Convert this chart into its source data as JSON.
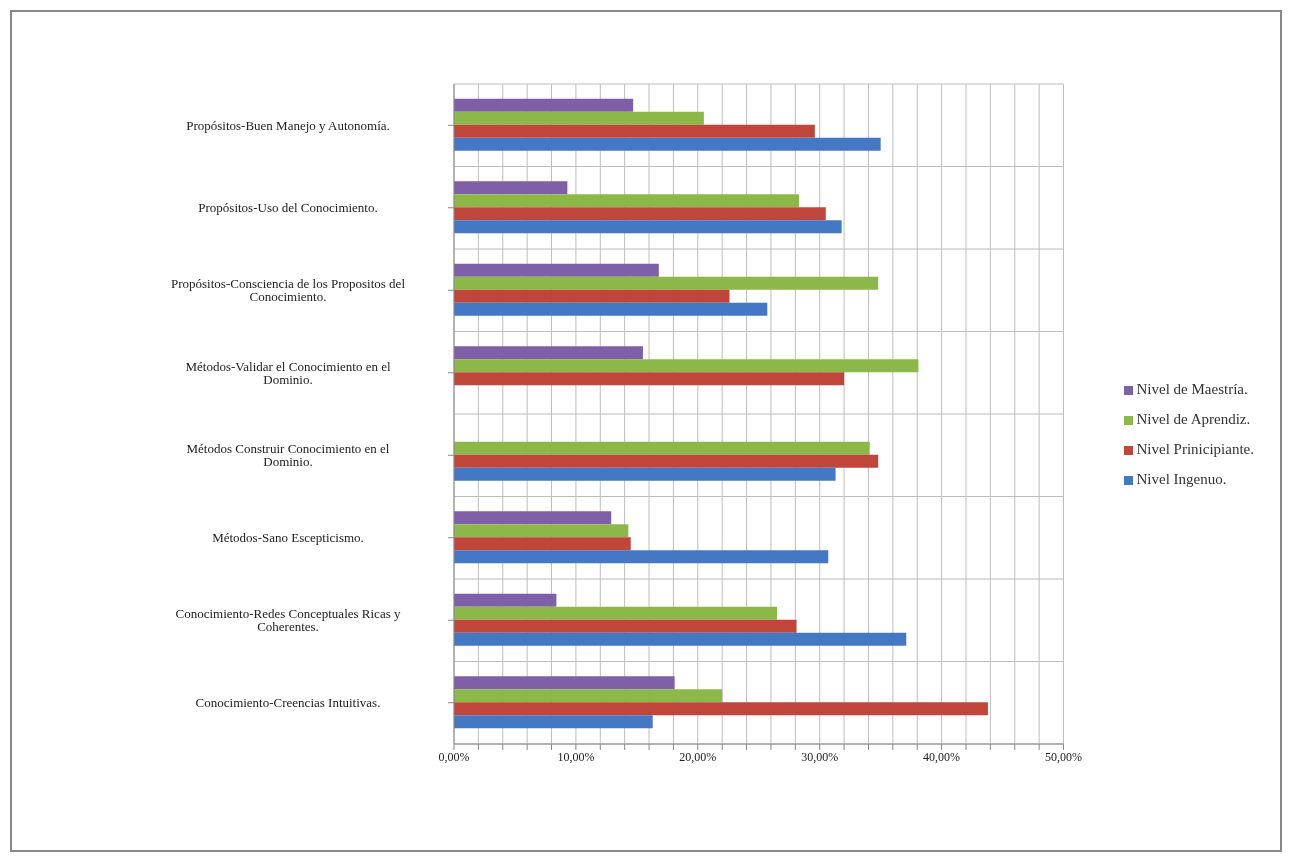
{
  "chart_data": {
    "type": "bar",
    "orientation": "horizontal",
    "categories": [
      "Propósitos-Buen Manejo y Autonomía.",
      "Propósitos-Uso del Conocimiento.",
      "Propósitos-Consciencia de los Propositos del Conocimiento.",
      "Métodos-Validar el Conocimiento en el Dominio.",
      "Métodos Construir Conocimiento en el Dominio.",
      "Métodos-Sano Escepticismo.",
      "Conocimiento-Redes Conceptuales Ricas y Coherentes.",
      "Conocimiento-Creencias Intuitivas."
    ],
    "series": [
      {
        "name": "Nivel de Maestría.",
        "color": "#7f5fa8",
        "values": [
          14.7,
          9.3,
          16.8,
          15.5,
          null,
          12.9,
          8.4,
          18.1
        ]
      },
      {
        "name": "Nivel de Aprendiz.",
        "color": "#8cb84a",
        "values": [
          20.5,
          28.3,
          34.8,
          38.1,
          34.1,
          14.3,
          26.5,
          22.0
        ]
      },
      {
        "name": "Nivel Prinicipiante.",
        "color": "#c0463c",
        "values": [
          29.6,
          30.5,
          22.6,
          32.0,
          34.8,
          14.5,
          28.1,
          43.8
        ]
      },
      {
        "name": "Nivel Ingenuo.",
        "color": "#4478c4",
        "values": [
          35.0,
          31.8,
          25.7,
          null,
          31.3,
          30.7,
          37.1,
          16.3
        ]
      }
    ],
    "xlim": [
      0,
      50
    ],
    "xticks": [
      {
        "value": 0,
        "label": "0,00%"
      },
      {
        "value": 2,
        "label": null
      },
      {
        "value": 4,
        "label": null
      },
      {
        "value": 6,
        "label": null
      },
      {
        "value": 8,
        "label": null
      },
      {
        "value": 10,
        "label": "10,00%"
      },
      {
        "value": 12,
        "label": null
      },
      {
        "value": 14,
        "label": null
      },
      {
        "value": 16,
        "label": null
      },
      {
        "value": 18,
        "label": null
      },
      {
        "value": 20,
        "label": "20,00%"
      },
      {
        "value": 22,
        "label": null
      },
      {
        "value": 24,
        "label": null
      },
      {
        "value": 26,
        "label": null
      },
      {
        "value": 28,
        "label": null
      },
      {
        "value": 30,
        "label": "30,00%"
      },
      {
        "value": 32,
        "label": null
      },
      {
        "value": 34,
        "label": null
      },
      {
        "value": 36,
        "label": null
      },
      {
        "value": 38,
        "label": null
      },
      {
        "value": 40,
        "label": "40,00%"
      },
      {
        "value": 42,
        "label": null
      },
      {
        "value": 44,
        "label": null
      },
      {
        "value": 46,
        "label": null
      },
      {
        "value": 48,
        "label": null
      },
      {
        "value": 50,
        "label": "50,00%"
      }
    ],
    "grid": true,
    "legend": "right"
  }
}
